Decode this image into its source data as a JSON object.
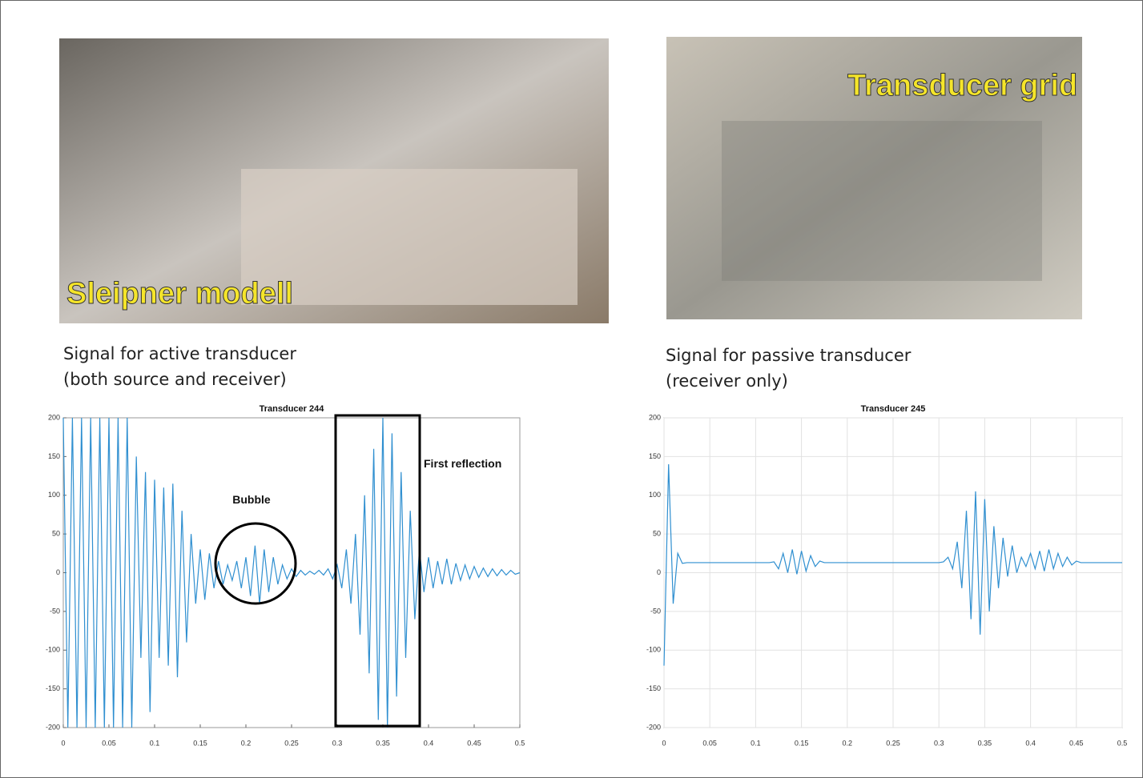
{
  "photos": [
    {
      "label": "Sleipner modell"
    },
    {
      "label": "Transducer grid"
    }
  ],
  "captions": [
    {
      "lines": [
        "Signal for active transducer",
        "(both source and receiver)"
      ]
    },
    {
      "lines": [
        "Signal for passive transducer",
        "(receiver only)"
      ]
    }
  ],
  "chart_data": [
    {
      "type": "line",
      "title": "Transducer 244",
      "color": "#2f8fd0",
      "grid": false,
      "annotations": [
        "Bubble",
        "First reflection"
      ],
      "xlim": [
        0,
        0.5
      ],
      "ylim": [
        -200,
        200
      ],
      "xticks": [
        0,
        0.05,
        0.1,
        0.15,
        0.2,
        0.25,
        0.3,
        0.35,
        0.4,
        0.45,
        0.5
      ],
      "yticks": [
        -200,
        -150,
        -100,
        -50,
        0,
        50,
        100,
        150,
        200
      ],
      "x": [
        0,
        0.005,
        0.01,
        0.015,
        0.02,
        0.025,
        0.03,
        0.035,
        0.04,
        0.045,
        0.05,
        0.055,
        0.06,
        0.065,
        0.07,
        0.075,
        0.08,
        0.085,
        0.09,
        0.095,
        0.1,
        0.105,
        0.11,
        0.115,
        0.12,
        0.125,
        0.13,
        0.135,
        0.14,
        0.145,
        0.15,
        0.155,
        0.16,
        0.165,
        0.17,
        0.175,
        0.18,
        0.185,
        0.19,
        0.195,
        0.2,
        0.205,
        0.21,
        0.215,
        0.22,
        0.225,
        0.23,
        0.235,
        0.24,
        0.245,
        0.25,
        0.255,
        0.26,
        0.265,
        0.27,
        0.275,
        0.28,
        0.285,
        0.29,
        0.295,
        0.3,
        0.305,
        0.31,
        0.315,
        0.32,
        0.325,
        0.33,
        0.335,
        0.34,
        0.345,
        0.35,
        0.355,
        0.36,
        0.365,
        0.37,
        0.375,
        0.38,
        0.385,
        0.39,
        0.395,
        0.4,
        0.405,
        0.41,
        0.415,
        0.42,
        0.425,
        0.43,
        0.435,
        0.44,
        0.445,
        0.45,
        0.455,
        0.46,
        0.465,
        0.47,
        0.475,
        0.48,
        0.485,
        0.49,
        0.495,
        0.5
      ],
      "values": [
        200,
        -200,
        200,
        -200,
        200,
        -200,
        200,
        -200,
        200,
        -200,
        200,
        -200,
        200,
        -200,
        200,
        -200,
        150,
        -110,
        130,
        -180,
        120,
        -110,
        110,
        -120,
        115,
        -135,
        80,
        -90,
        50,
        -40,
        30,
        -35,
        25,
        -20,
        15,
        -15,
        10,
        -10,
        15,
        -20,
        20,
        -30,
        35,
        -40,
        30,
        -25,
        20,
        -15,
        10,
        -8,
        5,
        -5,
        3,
        -3,
        2,
        -2,
        3,
        -3,
        5,
        -8,
        10,
        -20,
        30,
        -40,
        50,
        -80,
        100,
        -130,
        160,
        -190,
        200,
        -200,
        180,
        -160,
        130,
        -110,
        80,
        -60,
        30,
        -25,
        20,
        -20,
        15,
        -15,
        18,
        -15,
        12,
        -10,
        10,
        -8,
        8,
        -6,
        6,
        -5,
        5,
        -4,
        4,
        -3,
        3,
        -2,
        0
      ]
    },
    {
      "type": "line",
      "title": "Transducer 245",
      "color": "#2f8fd0",
      "grid": true,
      "xlim": [
        0,
        0.5
      ],
      "ylim": [
        -200,
        200
      ],
      "xticks": [
        0,
        0.05,
        0.1,
        0.15,
        0.2,
        0.25,
        0.3,
        0.35,
        0.4,
        0.45,
        0.5
      ],
      "yticks": [
        -200,
        -150,
        -100,
        -50,
        0,
        50,
        100,
        150,
        200
      ],
      "x": [
        0,
        0.005,
        0.01,
        0.015,
        0.02,
        0.025,
        0.03,
        0.035,
        0.04,
        0.045,
        0.05,
        0.055,
        0.06,
        0.065,
        0.07,
        0.075,
        0.08,
        0.085,
        0.09,
        0.095,
        0.1,
        0.105,
        0.11,
        0.115,
        0.12,
        0.125,
        0.13,
        0.135,
        0.14,
        0.145,
        0.15,
        0.155,
        0.16,
        0.165,
        0.17,
        0.175,
        0.18,
        0.185,
        0.19,
        0.195,
        0.2,
        0.205,
        0.21,
        0.215,
        0.22,
        0.225,
        0.23,
        0.235,
        0.24,
        0.245,
        0.25,
        0.255,
        0.26,
        0.265,
        0.27,
        0.275,
        0.28,
        0.285,
        0.29,
        0.295,
        0.3,
        0.305,
        0.31,
        0.315,
        0.32,
        0.325,
        0.33,
        0.335,
        0.34,
        0.345,
        0.35,
        0.355,
        0.36,
        0.365,
        0.37,
        0.375,
        0.38,
        0.385,
        0.39,
        0.395,
        0.4,
        0.405,
        0.41,
        0.415,
        0.42,
        0.425,
        0.43,
        0.435,
        0.44,
        0.445,
        0.45,
        0.455,
        0.46,
        0.465,
        0.47,
        0.475,
        0.48,
        0.485,
        0.49,
        0.495,
        0.5
      ],
      "values": [
        -120,
        140,
        -40,
        25,
        12,
        13,
        13,
        13,
        13,
        13,
        13,
        13,
        13,
        13,
        13,
        13,
        13,
        13,
        13,
        13,
        13,
        13,
        13,
        13,
        14,
        5,
        25,
        0,
        30,
        -2,
        28,
        2,
        22,
        8,
        15,
        13,
        13,
        13,
        13,
        13,
        13,
        13,
        13,
        13,
        13,
        13,
        13,
        13,
        13,
        13,
        13,
        13,
        13,
        13,
        13,
        13,
        13,
        13,
        13,
        13,
        13,
        14,
        20,
        5,
        40,
        -20,
        80,
        -60,
        105,
        -80,
        95,
        -50,
        60,
        -20,
        45,
        -5,
        35,
        0,
        20,
        8,
        25,
        5,
        28,
        2,
        30,
        5,
        25,
        8,
        20,
        10,
        15,
        13,
        13,
        13,
        13,
        13,
        13,
        13,
        13,
        13,
        13
      ]
    }
  ]
}
